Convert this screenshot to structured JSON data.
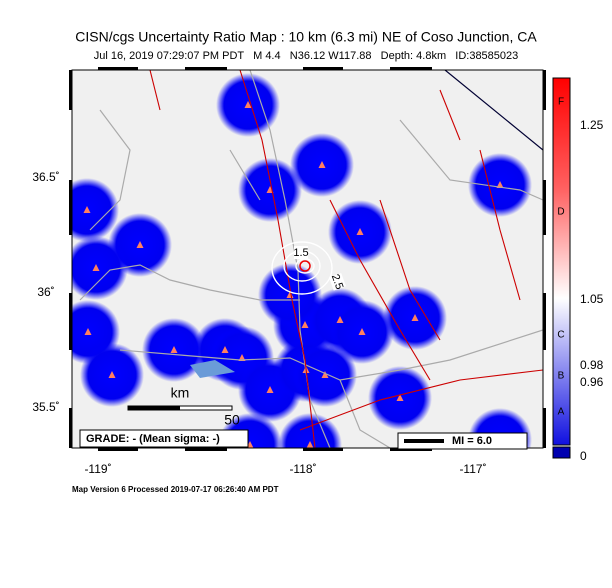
{
  "header": {
    "title": "CISN/cgs Uncertainty Ratio Map : 10 km (6.3 mi) NE of Coso Junction, CA",
    "subtitle": "Jul 16, 2019 07:29:07 PM PDT   M 4.4   N36.12 W117.88   Depth: 4.8km   ID:38585023"
  },
  "map": {
    "lat_labels": [
      "36.5˚",
      "36˚",
      "35.5˚"
    ],
    "lon_labels": [
      "-119˚",
      "-118˚",
      "-117˚"
    ],
    "contour_labels": [
      "1.5",
      "2.5"
    ]
  },
  "colorbar": {
    "letters": [
      "F",
      "D",
      "C",
      "B",
      "A"
    ],
    "ticks": [
      "1.25",
      "1.05",
      "0.98",
      "0.96",
      "0"
    ]
  },
  "scale_bar": {
    "unit": "km",
    "length": "50"
  },
  "legend": {
    "grade": "GRADE: - (Mean sigma: -)",
    "mi": "MI = 6.0"
  },
  "footer": "Map Version 6 Processed 2019-07-17 06:26:40 AM PDT"
}
